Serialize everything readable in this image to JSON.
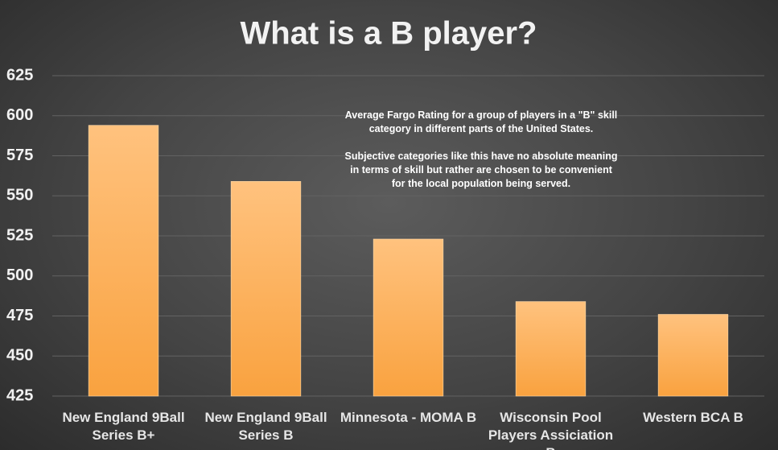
{
  "chart_data": {
    "type": "bar",
    "title": "What is a B player?",
    "categories": [
      "New England 9Ball Series B+",
      "New England 9Ball Series B",
      "Minnesota - MOMA B",
      "Wisconsin Pool Players Assiciation B",
      "Western BCA B"
    ],
    "values": [
      594,
      559,
      523,
      484,
      476
    ],
    "color": "#f9a23f",
    "ylim": [
      425,
      625
    ],
    "yticks": [
      425,
      450,
      475,
      500,
      525,
      550,
      575,
      600,
      625
    ],
    "grid": true,
    "annotation": [
      "Average Fargo Rating  for a group of players in a \"B\" skill  category  in different parts of the United States.",
      "Subjective categories like this  have no absolute meaning in terms of skill but rather are chosen to be convenient for the local population being served."
    ]
  }
}
